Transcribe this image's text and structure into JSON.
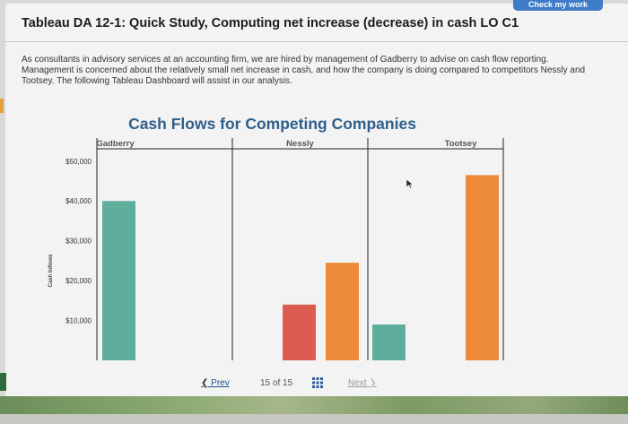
{
  "header": {
    "check_work_label": "Check my work",
    "title": "Tableau DA 12-1: Quick Study, Computing net increase (decrease) in cash LO C1",
    "intro": "As consultants in advisory services at an accounting firm, we are hired by management of Gadberry to advise on cash flow reporting. Management is concerned about the relatively small net increase in cash, and how the company is doing compared to competitors Nessly and Tootsey. The following Tableau Dashboard will assist in our analysis."
  },
  "dashboard": {
    "title": "Cash Flows for Competing Companies"
  },
  "chart_data": {
    "type": "bar",
    "title": "Cash Flows for Competing Companies",
    "ylabel": "Cash Inflows",
    "xlabel": "",
    "ylim": [
      0,
      54000
    ],
    "y_ticks": [
      10000,
      20000,
      30000,
      40000,
      50000
    ],
    "y_tick_labels": [
      "$10,000",
      "$20,000",
      "$30,000",
      "$40,000",
      "$50,000"
    ],
    "grid": false,
    "legend": "none",
    "panels": [
      {
        "name": "Gadberry",
        "bars": [
          {
            "value": 40000,
            "color": "#5fae9b"
          }
        ]
      },
      {
        "name": "Nessly",
        "bars": [
          {
            "value": 14000,
            "color": "#dc5c52"
          },
          {
            "value": 24500,
            "color": "#ec8a3a"
          }
        ]
      },
      {
        "name": "Tootsey",
        "bars": [
          {
            "value": 9000,
            "color": "#5fae9b"
          },
          {
            "value": 46500,
            "color": "#ec8a3a"
          }
        ]
      }
    ]
  },
  "pager": {
    "prev_label": "Prev",
    "page_text": "15 of 15",
    "next_label": "Next"
  },
  "colors": {
    "teal": "#5fae9b",
    "red": "#dc5c52",
    "orange": "#ec8a3a",
    "title_blue": "#2f5f8a"
  },
  "icons": {
    "prev": "chevron-left-icon",
    "next": "chevron-right-icon",
    "grid": "grid-icon",
    "cursor": "mouse-cursor-icon"
  }
}
